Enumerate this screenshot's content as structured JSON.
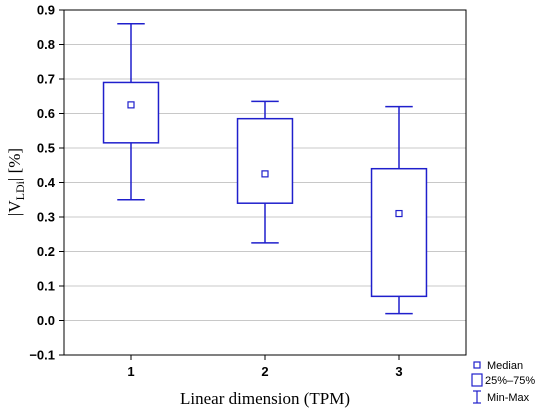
{
  "chart_data": {
    "type": "box",
    "title": "",
    "xlabel": "Linear dimension (TPM)",
    "ylabel_prefix": "|V",
    "ylabel_sub": "LDi",
    "ylabel_suffix": "| [%]",
    "ylim": [
      -0.1,
      0.9
    ],
    "yticks": [
      -0.1,
      0.0,
      0.1,
      0.2,
      0.3,
      0.4,
      0.5,
      0.6,
      0.7,
      0.8,
      0.9
    ],
    "ytick_labels": [
      "−0.1",
      "0.0",
      "0.1",
      "0.2",
      "0.3",
      "0.4",
      "0.5",
      "0.6",
      "0.7",
      "0.8",
      "0.9"
    ],
    "grid": true,
    "categories": [
      "1",
      "2",
      "3"
    ],
    "boxes": [
      {
        "category": "1",
        "min": 0.35,
        "q1": 0.515,
        "median": 0.625,
        "q3": 0.69,
        "max": 0.86
      },
      {
        "category": "2",
        "min": 0.225,
        "q1": 0.34,
        "median": 0.425,
        "q3": 0.585,
        "max": 0.635
      },
      {
        "category": "3",
        "min": 0.02,
        "q1": 0.07,
        "median": 0.31,
        "q3": 0.44,
        "max": 0.62
      }
    ],
    "legend": {
      "position": "bottom-right",
      "items": [
        {
          "symbol": "median",
          "label": "Median"
        },
        {
          "symbol": "box",
          "label": "25%–75%"
        },
        {
          "symbol": "whisker",
          "label": "Min-Max"
        }
      ]
    },
    "colors": {
      "series": "#1f1fcc",
      "grid": "#c8c8c8",
      "frame": "#000000"
    }
  }
}
